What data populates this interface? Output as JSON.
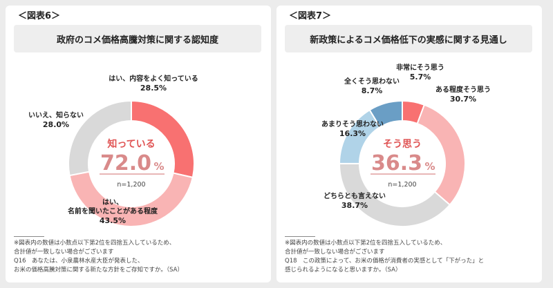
{
  "panels": [
    {
      "fig_label": "＜図表6＞",
      "title": "政府のコメ価格高騰対策に関する認知度",
      "center_label": "知っている",
      "center_value": "72.0",
      "center_unit": "%",
      "n_label": "n=1,200",
      "accent": "#e05555",
      "notes": [
        "※図表内の数値は小数点以下第2位を四捨五入しているため、",
        "合計値が一致しない場合がございます",
        "Q16　あなたは、小泉農林水産大臣が発表した、",
        "お米の価格高騰対策に関する新たな方針をご存知ですか。（SA）"
      ]
    },
    {
      "fig_label": "＜図表7＞",
      "title": "新政策によるコメ価格低下の実感に関する見通し",
      "center_label": "そう思う",
      "center_value": "36.3",
      "center_unit": "%",
      "n_label": "n=1,200",
      "accent": "#e05555",
      "notes": [
        "※図表内の数値は小数点以下第2位を四捨五入しているため、",
        "合計値が一致しない場合がございます",
        "Q18　この政策によって、お米の価格が消費者の実感として「下がった」と",
        "感じられるようになると思いますか。（SA）"
      ]
    }
  ],
  "chart_data": [
    {
      "type": "pie",
      "title": "政府のコメ価格高騰対策に関する認知度",
      "categories": [
        "はい、内容をよく知っている",
        "はい、名前を聞いたことがある程度",
        "いいえ、知らない"
      ],
      "values": [
        28.5,
        43.5,
        28.0
      ],
      "labels": [
        "28.5%",
        "43.5%",
        "28.0%"
      ],
      "colors": [
        "#f87171",
        "#f9b4b4",
        "#d9d9d9"
      ]
    },
    {
      "type": "pie",
      "title": "新政策によるコメ価格低下の実感に関する見通し",
      "categories": [
        "非常にそう思う",
        "ある程度そう思う",
        "どちらとも言えない",
        "あまりそう思わない",
        "全くそう思わない"
      ],
      "values": [
        5.7,
        30.7,
        38.7,
        16.3,
        8.7
      ],
      "labels": [
        "5.7%",
        "30.7%",
        "38.7%",
        "16.3%",
        "8.7%"
      ],
      "colors": [
        "#f87171",
        "#f9b4b4",
        "#d9d9d9",
        "#b0d3e8",
        "#6a9ec5"
      ]
    }
  ]
}
